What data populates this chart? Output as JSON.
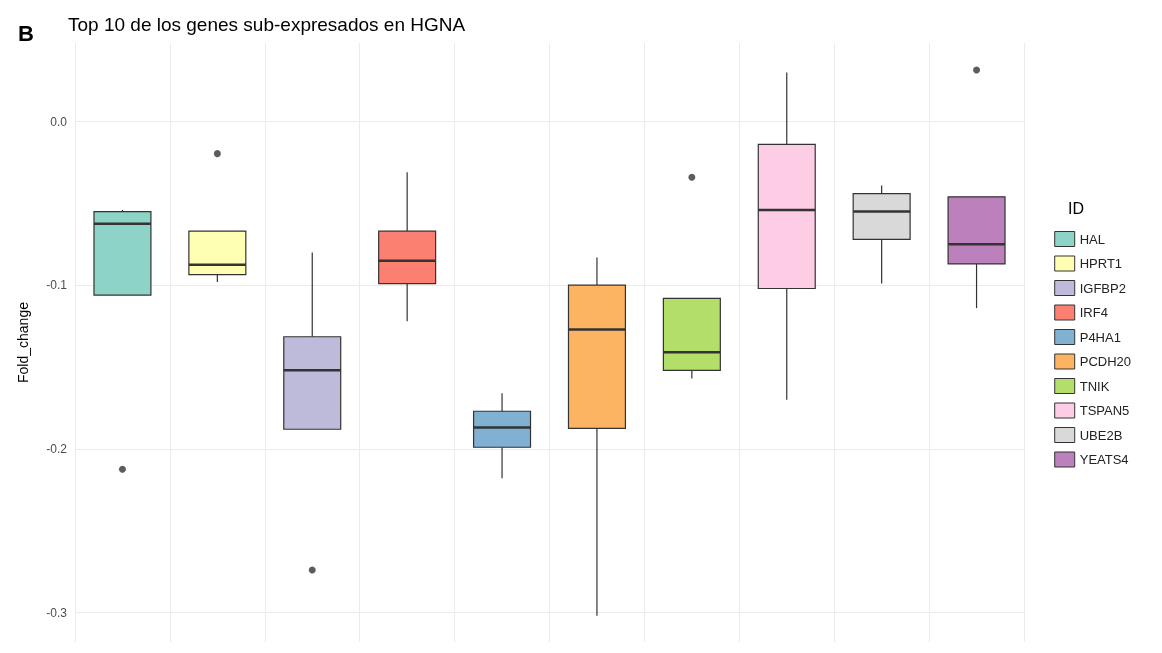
{
  "chart_data": {
    "type": "box",
    "title": "Top 10 de los genes sub-expresados en HGNA",
    "ylabel": "Fold_change",
    "legend_title": "ID",
    "annotations": [
      "B"
    ],
    "categories": [
      null,
      null,
      null,
      null,
      null,
      null,
      null,
      null,
      null,
      null
    ],
    "series": [
      {
        "name": "HAL",
        "color": "#8dd3c7",
        "boxes": [
          {
            "low": -0.106,
            "q1": -0.106,
            "median": -0.0625,
            "q3": -0.055,
            "high": -0.054,
            "outliers": [
              -0.2125
            ]
          },
          null,
          null,
          null,
          null,
          null,
          null,
          null,
          null,
          null
        ]
      },
      {
        "name": "HPRT1",
        "color": "#ffffb3",
        "boxes": [
          null,
          {
            "low": -0.098,
            "q1": -0.0935,
            "median": -0.0875,
            "q3": -0.067,
            "high": -0.067,
            "outliers": [
              -0.0196
            ]
          },
          null,
          null,
          null,
          null,
          null,
          null,
          null,
          null
        ]
      },
      {
        "name": "IGFBP2",
        "color": "#bebada",
        "boxes": [
          null,
          null,
          {
            "low": -0.188,
            "q1": -0.188,
            "median": -0.152,
            "q3": -0.1315,
            "high": -0.08,
            "outliers": [
              -0.274
            ]
          },
          null,
          null,
          null,
          null,
          null,
          null,
          null
        ]
      },
      {
        "name": "IRF4",
        "color": "#fb8072",
        "boxes": [
          null,
          null,
          null,
          {
            "low": -0.122,
            "q1": -0.099,
            "median": -0.085,
            "q3": -0.067,
            "high": -0.031
          },
          null,
          null,
          null,
          null,
          null,
          null
        ]
      },
      {
        "name": "P4HA1",
        "color": "#80b1d3",
        "boxes": [
          null,
          null,
          null,
          null,
          {
            "low": -0.218,
            "q1": -0.199,
            "median": -0.187,
            "q3": -0.177,
            "high": -0.166
          },
          null,
          null,
          null,
          null,
          null
        ]
      },
      {
        "name": "PCDH20",
        "color": "#fdb462",
        "boxes": [
          null,
          null,
          null,
          null,
          null,
          {
            "low": -0.302,
            "q1": -0.1875,
            "median": -0.127,
            "q3": -0.1,
            "high": -0.083
          },
          null,
          null,
          null,
          null
        ]
      },
      {
        "name": "TNIK",
        "color": "#b3de69",
        "boxes": [
          null,
          null,
          null,
          null,
          null,
          null,
          {
            "low": -0.157,
            "q1": -0.152,
            "median": -0.141,
            "q3": -0.108,
            "high": -0.108,
            "outliers": [
              -0.034
            ]
          },
          null,
          null,
          null
        ]
      },
      {
        "name": "TSPAN5",
        "color": "#fccde5",
        "boxes": [
          null,
          null,
          null,
          null,
          null,
          null,
          null,
          {
            "low": -0.17,
            "q1": -0.102,
            "median": -0.054,
            "q3": -0.014,
            "high": 0.03
          },
          null,
          null
        ]
      },
      {
        "name": "UBE2B",
        "color": "#d9d9d9",
        "boxes": [
          null,
          null,
          null,
          null,
          null,
          null,
          null,
          null,
          {
            "low": -0.099,
            "q1": -0.072,
            "median": -0.055,
            "q3": -0.044,
            "high": -0.039
          },
          null
        ]
      },
      {
        "name": "YEATS4",
        "color": "#bc80bd",
        "boxes": [
          null,
          null,
          null,
          null,
          null,
          null,
          null,
          null,
          null,
          {
            "low": -0.114,
            "q1": -0.087,
            "median": -0.075,
            "q3": -0.046,
            "high": -0.046,
            "outliers": [
              0.0315
            ]
          }
        ]
      }
    ],
    "ylim": [
      -0.318,
      0.048
    ],
    "yticks": [
      {
        "value": -0.3,
        "label": "-0.3"
      },
      {
        "value": -0.2,
        "label": "-0.2"
      },
      {
        "value": -0.1,
        "label": "-0.1"
      },
      {
        "value": 0,
        "label": "0.0"
      }
    ],
    "grid": true,
    "legend": "right",
    "tick_labels": "y"
  }
}
